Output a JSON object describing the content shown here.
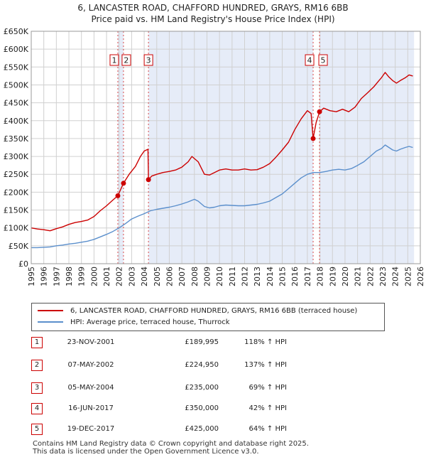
{
  "title_line1": "6, LANCASTER ROAD, CHAFFORD HUNDRED, GRAYS, RM16 6BB",
  "title_line2": "Price paid vs. HM Land Registry's House Price Index (HPI)",
  "colors": {
    "property": "#cc0000",
    "hpi": "#5b8fcc",
    "shade": "#e6ecf8",
    "marker_border": "#cc0000"
  },
  "chart_data": {
    "type": "line",
    "xlim": [
      1995,
      2026
    ],
    "ylim": [
      0,
      650000
    ],
    "y_ticks": [
      0,
      50000,
      100000,
      150000,
      200000,
      250000,
      300000,
      350000,
      400000,
      450000,
      500000,
      550000,
      600000,
      650000
    ],
    "y_tick_labels": [
      "£0",
      "£50K",
      "£100K",
      "£150K",
      "£200K",
      "£250K",
      "£300K",
      "£350K",
      "£400K",
      "£450K",
      "£500K",
      "£550K",
      "£600K",
      "£650K"
    ],
    "x_ticks": [
      "1995",
      "1996",
      "1997",
      "1998",
      "1999",
      "2000",
      "2001",
      "2002",
      "2003",
      "2004",
      "2005",
      "2006",
      "2007",
      "2008",
      "2009",
      "2010",
      "2011",
      "2012",
      "2013",
      "2014",
      "2015",
      "2016",
      "2017",
      "2018",
      "2019",
      "2020",
      "2021",
      "2022",
      "2023",
      "2024",
      "2025",
      "2026"
    ],
    "grid": true,
    "shaded_periods": [
      [
        2001.9,
        2002.35
      ],
      [
        2004.34,
        2017.46
      ],
      [
        2017.97,
        2025.5
      ]
    ],
    "series": [
      {
        "name": "6, LANCASTER ROAD, CHAFFORD HUNDRED, GRAYS, RM16 6BB (terraced house)",
        "x": [
          1995,
          1995.5,
          1996,
          1996.5,
          1997,
          1997.5,
          1998,
          1998.5,
          1999,
          1999.5,
          2000,
          2000.5,
          2001,
          2001.5,
          2001.9,
          2002.35,
          2002.8,
          2003.3,
          2003.7,
          2004.0,
          2004.3,
          2004.34,
          2004.6,
          2005,
          2005.5,
          2006,
          2006.5,
          2007,
          2007.5,
          2007.8,
          2008.3,
          2008.8,
          2009.2,
          2009.6,
          2010,
          2010.5,
          2011,
          2011.5,
          2012,
          2012.5,
          2013,
          2013.5,
          2014,
          2014.5,
          2015,
          2015.5,
          2016,
          2016.5,
          2017,
          2017.3,
          2017.46,
          2017.7,
          2017.97,
          2018.3,
          2018.8,
          2019.3,
          2019.8,
          2020.3,
          2020.8,
          2021.3,
          2021.8,
          2022.3,
          2022.7,
          2022.9,
          2023.2,
          2023.5,
          2023.8,
          2024.1,
          2024.4,
          2024.8,
          2025.1,
          2025.4
        ],
        "values": [
          100000,
          97000,
          95000,
          92000,
          98000,
          103000,
          110000,
          115000,
          118000,
          122000,
          132000,
          148000,
          162000,
          178000,
          189995,
          224950,
          250000,
          272000,
          300000,
          315000,
          320000,
          235000,
          245000,
          250000,
          255000,
          258000,
          262000,
          270000,
          285000,
          300000,
          285000,
          250000,
          248000,
          255000,
          262000,
          265000,
          262000,
          262000,
          265000,
          262000,
          263000,
          270000,
          280000,
          298000,
          318000,
          340000,
          375000,
          405000,
          428000,
          420000,
          350000,
          395000,
          425000,
          435000,
          428000,
          425000,
          432000,
          425000,
          438000,
          462000,
          478000,
          495000,
          512000,
          520000,
          535000,
          522000,
          512000,
          505000,
          512000,
          520000,
          528000,
          525000
        ]
      },
      {
        "name": "HPI: Average price, terraced house, Thurrock",
        "x": [
          1995,
          1995.5,
          1996,
          1996.5,
          1997,
          1997.5,
          1998,
          1998.5,
          1999,
          1999.5,
          2000,
          2000.5,
          2001,
          2001.5,
          2002,
          2002.5,
          2003,
          2003.5,
          2004,
          2004.5,
          2005,
          2005.5,
          2006,
          2006.5,
          2007,
          2007.5,
          2008,
          2008.3,
          2008.8,
          2009.2,
          2009.6,
          2010,
          2010.5,
          2011,
          2011.5,
          2012,
          2012.5,
          2013,
          2013.5,
          2014,
          2014.5,
          2015,
          2015.5,
          2016,
          2016.5,
          2017,
          2017.5,
          2018,
          2018.5,
          2019,
          2019.5,
          2020,
          2020.5,
          2021,
          2021.5,
          2022,
          2022.5,
          2022.9,
          2023.2,
          2023.5,
          2023.8,
          2024.1,
          2024.4,
          2024.8,
          2025.1,
          2025.4
        ],
        "values": [
          45000,
          45000,
          46000,
          47000,
          50000,
          52000,
          55000,
          57000,
          60000,
          63000,
          68000,
          75000,
          82000,
          90000,
          100000,
          112000,
          125000,
          133000,
          140000,
          148000,
          152000,
          155000,
          158000,
          162000,
          167000,
          173000,
          180000,
          175000,
          160000,
          156000,
          158000,
          162000,
          164000,
          163000,
          162000,
          162000,
          164000,
          166000,
          170000,
          175000,
          185000,
          195000,
          210000,
          225000,
          240000,
          250000,
          255000,
          255000,
          258000,
          262000,
          264000,
          262000,
          266000,
          275000,
          285000,
          300000,
          315000,
          322000,
          332000,
          325000,
          318000,
          315000,
          320000,
          325000,
          328000,
          325000
        ]
      }
    ],
    "transactions": [
      {
        "label": "1",
        "x": 2001.9,
        "price": 189995,
        "date": "23-NOV-2001",
        "price_text": "£189,995",
        "hpi_text": "118% ↑ HPI"
      },
      {
        "label": "2",
        "x": 2002.35,
        "price": 224950,
        "date": "07-MAY-2002",
        "price_text": "£224,950",
        "hpi_text": "137% ↑ HPI"
      },
      {
        "label": "3",
        "x": 2004.34,
        "price": 235000,
        "date": "05-MAY-2004",
        "price_text": "£235,000",
        "hpi_text": "69% ↑ HPI"
      },
      {
        "label": "4",
        "x": 2017.46,
        "price": 350000,
        "date": "16-JUN-2017",
        "price_text": "£350,000",
        "hpi_text": "42% ↑ HPI"
      },
      {
        "label": "5",
        "x": 2017.97,
        "price": 425000,
        "date": "19-DEC-2017",
        "price_text": "£425,000",
        "hpi_text": "64% ↑ HPI"
      }
    ]
  },
  "legend": {
    "property": "6, LANCASTER ROAD, CHAFFORD HUNDRED, GRAYS, RM16 6BB (terraced house)",
    "hpi": "HPI: Average price, terraced house, Thurrock"
  },
  "footer_line1": "Contains HM Land Registry data © Crown copyright and database right 2025.",
  "footer_line2": "This data is licensed under the Open Government Licence v3.0."
}
